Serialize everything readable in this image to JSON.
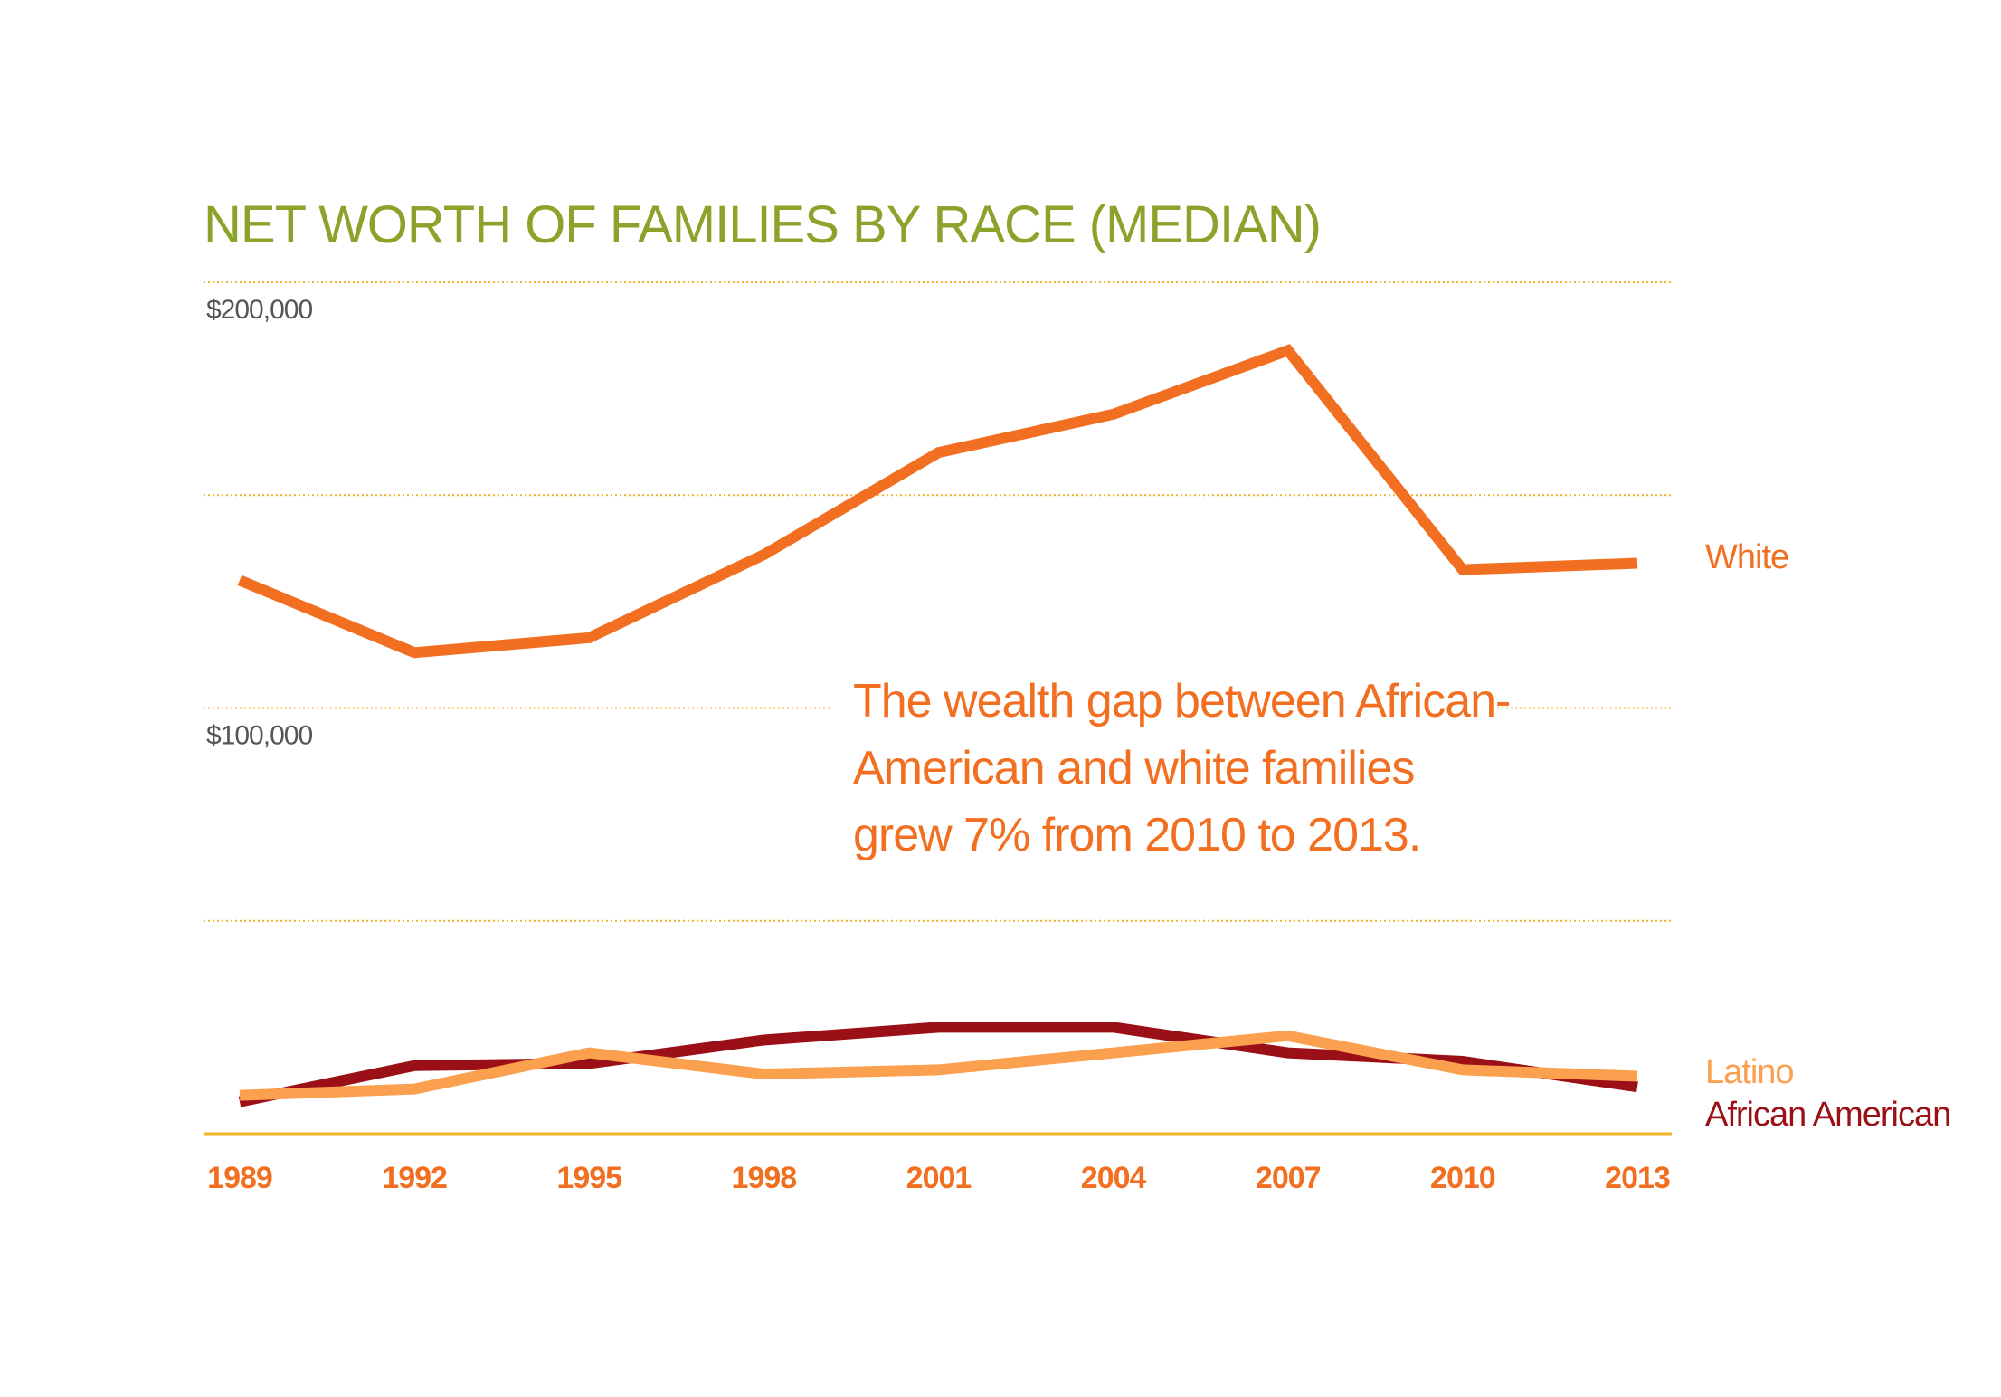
{
  "colors": {
    "title": "#8ba32a",
    "grid": "#f0b323",
    "axis": "#f0b323",
    "ytick": "#555555",
    "xtick": "#f26f21",
    "white": "#f26f21",
    "latino": "#fba04f",
    "african_american": "#9b1016",
    "annotation": "#f26f21"
  },
  "chart_data": {
    "type": "line",
    "title": "NET WORTH OF FAMILIES BY RACE (MEDIAN)",
    "xlabel": "",
    "ylabel": "",
    "categories": [
      "1989",
      "1992",
      "1995",
      "1998",
      "2001",
      "2004",
      "2007",
      "2010",
      "2013"
    ],
    "ylim": [
      0,
      200000
    ],
    "yticks": [
      0,
      50000,
      100000,
      150000,
      200000
    ],
    "ytick_labels": [
      {
        "value": 200000,
        "label": "$200,000"
      },
      {
        "value": 100000,
        "label": "$100,000"
      }
    ],
    "grid": true,
    "series": [
      {
        "name": "White",
        "color": "#f26f21",
        "values": [
          130000,
          113000,
          116500,
          136000,
          160000,
          169000,
          184000,
          132500,
          134000
        ]
      },
      {
        "name": "Latino",
        "color": "#fba04f",
        "values": [
          9000,
          10500,
          19000,
          14000,
          15000,
          19000,
          23000,
          15000,
          13500
        ]
      },
      {
        "name": "African American",
        "color": "#9b1016",
        "values": [
          7500,
          16000,
          16500,
          22000,
          25000,
          25000,
          19000,
          17000,
          11000
        ]
      }
    ],
    "annotation": {
      "lines": [
        "The wealth gap between African-",
        "American and white families",
        "grew 7% from 2010 to 2013."
      ]
    }
  }
}
